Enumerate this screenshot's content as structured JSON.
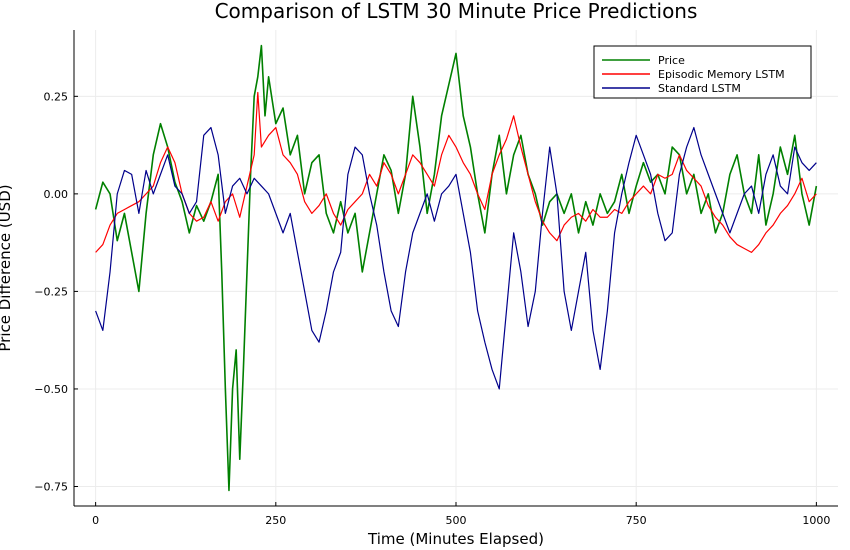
{
  "chart_data": {
    "type": "line",
    "title": "Comparison of LSTM 30 Minute Price Predictions",
    "xlabel": "Time (Minutes Elapsed)",
    "ylabel": "Price Difference (USD)",
    "xlim": [
      -30,
      1030
    ],
    "ylim": [
      -0.8,
      0.42
    ],
    "xticks": [
      0,
      250,
      500,
      750,
      1000
    ],
    "xtick_labels": [
      "0",
      "250",
      "500",
      "750",
      "1000"
    ],
    "yticks": [
      0.25,
      0.0,
      -0.25,
      -0.5,
      -0.75
    ],
    "ytick_labels": [
      "0.25",
      "0.00",
      "−0.25",
      "−0.50",
      "−0.75"
    ],
    "grid": true,
    "legend_position": "top-right",
    "series": [
      {
        "name": "Price",
        "color": "#008000",
        "points": [
          [
            0,
            -0.04
          ],
          [
            10,
            0.03
          ],
          [
            20,
            0.0
          ],
          [
            30,
            -0.12
          ],
          [
            40,
            -0.05
          ],
          [
            50,
            -0.15
          ],
          [
            60,
            -0.25
          ],
          [
            70,
            -0.05
          ],
          [
            80,
            0.1
          ],
          [
            90,
            0.18
          ],
          [
            100,
            0.12
          ],
          [
            110,
            0.03
          ],
          [
            120,
            -0.02
          ],
          [
            130,
            -0.1
          ],
          [
            140,
            -0.03
          ],
          [
            150,
            -0.07
          ],
          [
            160,
            -0.02
          ],
          [
            170,
            0.05
          ],
          [
            175,
            -0.2
          ],
          [
            180,
            -0.5
          ],
          [
            185,
            -0.76
          ],
          [
            190,
            -0.5
          ],
          [
            195,
            -0.4
          ],
          [
            200,
            -0.68
          ],
          [
            205,
            -0.45
          ],
          [
            210,
            -0.2
          ],
          [
            215,
            0.05
          ],
          [
            220,
            0.25
          ],
          [
            225,
            0.3
          ],
          [
            230,
            0.38
          ],
          [
            235,
            0.2
          ],
          [
            240,
            0.3
          ],
          [
            250,
            0.18
          ],
          [
            260,
            0.22
          ],
          [
            270,
            0.1
          ],
          [
            280,
            0.15
          ],
          [
            290,
            0.0
          ],
          [
            300,
            0.08
          ],
          [
            310,
            0.1
          ],
          [
            320,
            -0.05
          ],
          [
            330,
            -0.1
          ],
          [
            340,
            -0.02
          ],
          [
            350,
            -0.1
          ],
          [
            360,
            -0.05
          ],
          [
            370,
            -0.2
          ],
          [
            380,
            -0.1
          ],
          [
            390,
            0.0
          ],
          [
            400,
            0.1
          ],
          [
            410,
            0.06
          ],
          [
            420,
            -0.05
          ],
          [
            430,
            0.05
          ],
          [
            440,
            0.25
          ],
          [
            450,
            0.12
          ],
          [
            460,
            -0.05
          ],
          [
            470,
            0.05
          ],
          [
            480,
            0.2
          ],
          [
            490,
            0.28
          ],
          [
            500,
            0.36
          ],
          [
            510,
            0.2
          ],
          [
            520,
            0.12
          ],
          [
            530,
            0.0
          ],
          [
            540,
            -0.1
          ],
          [
            550,
            0.05
          ],
          [
            560,
            0.15
          ],
          [
            570,
            0.0
          ],
          [
            580,
            0.1
          ],
          [
            590,
            0.15
          ],
          [
            600,
            0.05
          ],
          [
            610,
            0.0
          ],
          [
            620,
            -0.08
          ],
          [
            630,
            -0.02
          ],
          [
            640,
            0.0
          ],
          [
            650,
            -0.05
          ],
          [
            660,
            0.0
          ],
          [
            670,
            -0.1
          ],
          [
            680,
            -0.02
          ],
          [
            690,
            -0.08
          ],
          [
            700,
            0.0
          ],
          [
            710,
            -0.05
          ],
          [
            720,
            -0.02
          ],
          [
            730,
            0.05
          ],
          [
            740,
            -0.05
          ],
          [
            750,
            0.02
          ],
          [
            760,
            0.08
          ],
          [
            770,
            0.03
          ],
          [
            780,
            0.05
          ],
          [
            790,
            0.0
          ],
          [
            800,
            0.12
          ],
          [
            810,
            0.1
          ],
          [
            820,
            0.0
          ],
          [
            830,
            0.05
          ],
          [
            840,
            -0.05
          ],
          [
            850,
            0.0
          ],
          [
            860,
            -0.1
          ],
          [
            870,
            -0.05
          ],
          [
            880,
            0.05
          ],
          [
            890,
            0.1
          ],
          [
            900,
            0.0
          ],
          [
            910,
            -0.05
          ],
          [
            920,
            0.1
          ],
          [
            930,
            -0.08
          ],
          [
            940,
            0.0
          ],
          [
            950,
            0.12
          ],
          [
            960,
            0.05
          ],
          [
            970,
            0.15
          ],
          [
            980,
            0.0
          ],
          [
            990,
            -0.08
          ],
          [
            1000,
            0.02
          ]
        ]
      },
      {
        "name": "Episodic Memory LSTM",
        "color": "#ff0000",
        "points": [
          [
            0,
            -0.15
          ],
          [
            10,
            -0.13
          ],
          [
            20,
            -0.08
          ],
          [
            30,
            -0.05
          ],
          [
            40,
            -0.04
          ],
          [
            50,
            -0.03
          ],
          [
            60,
            -0.02
          ],
          [
            70,
            0.0
          ],
          [
            80,
            0.02
          ],
          [
            90,
            0.08
          ],
          [
            100,
            0.12
          ],
          [
            110,
            0.08
          ],
          [
            120,
            0.0
          ],
          [
            130,
            -0.05
          ],
          [
            140,
            -0.07
          ],
          [
            150,
            -0.06
          ],
          [
            160,
            -0.02
          ],
          [
            170,
            -0.07
          ],
          [
            180,
            -0.02
          ],
          [
            190,
            0.0
          ],
          [
            200,
            -0.06
          ],
          [
            210,
            0.02
          ],
          [
            220,
            0.1
          ],
          [
            225,
            0.26
          ],
          [
            230,
            0.12
          ],
          [
            240,
            0.15
          ],
          [
            250,
            0.17
          ],
          [
            260,
            0.1
          ],
          [
            270,
            0.08
          ],
          [
            280,
            0.05
          ],
          [
            290,
            -0.02
          ],
          [
            300,
            -0.05
          ],
          [
            310,
            -0.03
          ],
          [
            320,
            0.0
          ],
          [
            330,
            -0.05
          ],
          [
            340,
            -0.08
          ],
          [
            350,
            -0.04
          ],
          [
            360,
            -0.02
          ],
          [
            370,
            0.0
          ],
          [
            380,
            0.05
          ],
          [
            390,
            0.02
          ],
          [
            400,
            0.08
          ],
          [
            410,
            0.05
          ],
          [
            420,
            0.0
          ],
          [
            430,
            0.05
          ],
          [
            440,
            0.1
          ],
          [
            450,
            0.08
          ],
          [
            460,
            0.05
          ],
          [
            470,
            0.02
          ],
          [
            480,
            0.1
          ],
          [
            490,
            0.15
          ],
          [
            500,
            0.12
          ],
          [
            510,
            0.08
          ],
          [
            520,
            0.05
          ],
          [
            530,
            0.0
          ],
          [
            540,
            -0.04
          ],
          [
            550,
            0.05
          ],
          [
            560,
            0.1
          ],
          [
            570,
            0.14
          ],
          [
            580,
            0.2
          ],
          [
            590,
            0.12
          ],
          [
            600,
            0.05
          ],
          [
            610,
            -0.02
          ],
          [
            620,
            -0.07
          ],
          [
            630,
            -0.1
          ],
          [
            640,
            -0.12
          ],
          [
            650,
            -0.08
          ],
          [
            660,
            -0.06
          ],
          [
            670,
            -0.05
          ],
          [
            680,
            -0.07
          ],
          [
            690,
            -0.04
          ],
          [
            700,
            -0.06
          ],
          [
            710,
            -0.06
          ],
          [
            720,
            -0.04
          ],
          [
            730,
            -0.05
          ],
          [
            740,
            -0.02
          ],
          [
            750,
            0.0
          ],
          [
            760,
            0.02
          ],
          [
            770,
            0.0
          ],
          [
            780,
            0.05
          ],
          [
            790,
            0.04
          ],
          [
            800,
            0.05
          ],
          [
            810,
            0.1
          ],
          [
            820,
            0.06
          ],
          [
            830,
            0.04
          ],
          [
            840,
            0.02
          ],
          [
            850,
            -0.03
          ],
          [
            860,
            -0.06
          ],
          [
            870,
            -0.08
          ],
          [
            880,
            -0.11
          ],
          [
            890,
            -0.13
          ],
          [
            900,
            -0.14
          ],
          [
            910,
            -0.15
          ],
          [
            920,
            -0.13
          ],
          [
            930,
            -0.1
          ],
          [
            940,
            -0.08
          ],
          [
            950,
            -0.05
          ],
          [
            960,
            -0.03
          ],
          [
            970,
            0.0
          ],
          [
            980,
            0.04
          ],
          [
            990,
            -0.02
          ],
          [
            1000,
            0.0
          ]
        ]
      },
      {
        "name": "Standard LSTM",
        "color": "#00008b",
        "points": [
          [
            0,
            -0.3
          ],
          [
            10,
            -0.35
          ],
          [
            20,
            -0.2
          ],
          [
            30,
            0.0
          ],
          [
            40,
            0.06
          ],
          [
            50,
            0.05
          ],
          [
            60,
            -0.05
          ],
          [
            70,
            0.06
          ],
          [
            80,
            0.0
          ],
          [
            90,
            0.05
          ],
          [
            100,
            0.1
          ],
          [
            110,
            0.02
          ],
          [
            120,
            0.0
          ],
          [
            130,
            -0.05
          ],
          [
            140,
            -0.02
          ],
          [
            150,
            0.15
          ],
          [
            160,
            0.17
          ],
          [
            170,
            0.1
          ],
          [
            180,
            -0.05
          ],
          [
            190,
            0.02
          ],
          [
            200,
            0.04
          ],
          [
            210,
            0.0
          ],
          [
            220,
            0.04
          ],
          [
            230,
            0.02
          ],
          [
            240,
            0.0
          ],
          [
            250,
            -0.05
          ],
          [
            260,
            -0.1
          ],
          [
            270,
            -0.05
          ],
          [
            280,
            -0.15
          ],
          [
            290,
            -0.25
          ],
          [
            300,
            -0.35
          ],
          [
            310,
            -0.38
          ],
          [
            320,
            -0.3
          ],
          [
            330,
            -0.2
          ],
          [
            340,
            -0.15
          ],
          [
            350,
            0.05
          ],
          [
            360,
            0.12
          ],
          [
            370,
            0.1
          ],
          [
            380,
            0.0
          ],
          [
            390,
            -0.08
          ],
          [
            400,
            -0.2
          ],
          [
            410,
            -0.3
          ],
          [
            420,
            -0.34
          ],
          [
            430,
            -0.2
          ],
          [
            440,
            -0.1
          ],
          [
            450,
            -0.05
          ],
          [
            460,
            0.0
          ],
          [
            470,
            -0.07
          ],
          [
            480,
            0.0
          ],
          [
            490,
            0.02
          ],
          [
            500,
            0.05
          ],
          [
            510,
            -0.05
          ],
          [
            520,
            -0.15
          ],
          [
            530,
            -0.3
          ],
          [
            540,
            -0.38
          ],
          [
            550,
            -0.45
          ],
          [
            560,
            -0.5
          ],
          [
            570,
            -0.3
          ],
          [
            580,
            -0.1
          ],
          [
            590,
            -0.2
          ],
          [
            600,
            -0.34
          ],
          [
            610,
            -0.25
          ],
          [
            620,
            -0.05
          ],
          [
            630,
            0.12
          ],
          [
            640,
            0.0
          ],
          [
            650,
            -0.25
          ],
          [
            660,
            -0.35
          ],
          [
            670,
            -0.25
          ],
          [
            680,
            -0.15
          ],
          [
            690,
            -0.35
          ],
          [
            700,
            -0.45
          ],
          [
            710,
            -0.3
          ],
          [
            720,
            -0.1
          ],
          [
            730,
            0.0
          ],
          [
            740,
            0.08
          ],
          [
            750,
            0.15
          ],
          [
            760,
            0.1
          ],
          [
            770,
            0.05
          ],
          [
            780,
            -0.05
          ],
          [
            790,
            -0.12
          ],
          [
            800,
            -0.1
          ],
          [
            810,
            0.05
          ],
          [
            820,
            0.12
          ],
          [
            830,
            0.17
          ],
          [
            840,
            0.1
          ],
          [
            850,
            0.05
          ],
          [
            860,
            0.0
          ],
          [
            870,
            -0.05
          ],
          [
            880,
            -0.1
          ],
          [
            890,
            -0.05
          ],
          [
            900,
            0.0
          ],
          [
            910,
            0.02
          ],
          [
            920,
            -0.05
          ],
          [
            930,
            0.05
          ],
          [
            940,
            0.1
          ],
          [
            950,
            0.02
          ],
          [
            960,
            0.0
          ],
          [
            970,
            0.12
          ],
          [
            980,
            0.08
          ],
          [
            990,
            0.06
          ],
          [
            1000,
            0.08
          ]
        ]
      }
    ]
  }
}
